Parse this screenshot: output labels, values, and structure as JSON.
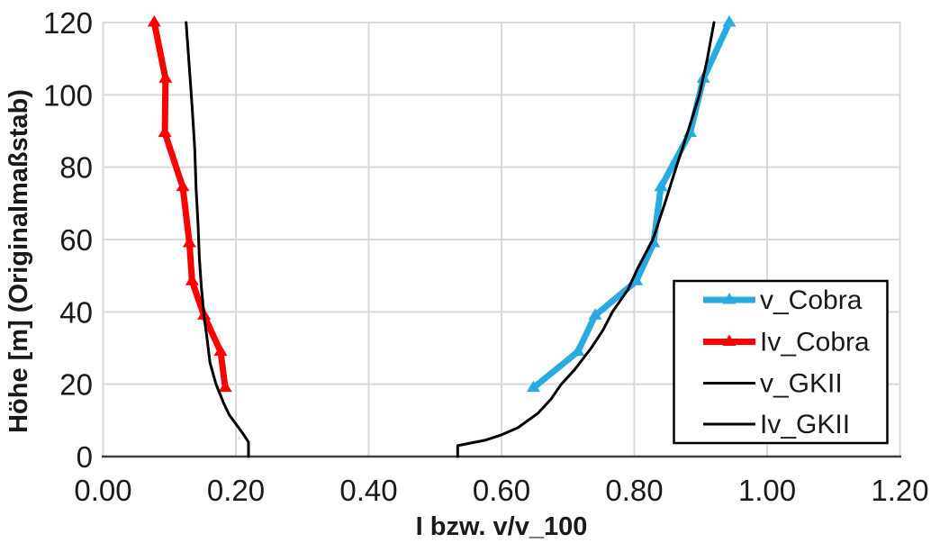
{
  "axes": {
    "x": {
      "title": "I bzw. v/v_100",
      "min": 0,
      "max": 1.2,
      "ticks": [
        "0.00",
        "0.20",
        "0.40",
        "0.60",
        "0.80",
        "1.00",
        "1.20"
      ],
      "tick_values": [
        0,
        0.2,
        0.4,
        0.6,
        0.8,
        1.0,
        1.2
      ]
    },
    "y": {
      "title": "Höhe [m] (Originalmaßstab)",
      "min": 0,
      "max": 120,
      "ticks": [
        "0",
        "20",
        "40",
        "60",
        "80",
        "100",
        "120"
      ],
      "tick_values": [
        0,
        20,
        40,
        60,
        80,
        100,
        120
      ]
    }
  },
  "plot": {
    "background": "#ffffff",
    "grid_color": "#d9d9d9",
    "axis_line_color": "#404040",
    "grid": "on"
  },
  "chart_data": {
    "type": "line",
    "description": "Vertical profiles: x = turbulence intensity I or normalized velocity v/v_100, y = height in m",
    "xlabel": "I bzw. v/v_100",
    "ylabel": "Höhe [m] (Originalmaßstab)",
    "xlim": [
      0,
      1.2
    ],
    "ylim": [
      0,
      120
    ],
    "legend": {
      "position": "inside-right",
      "entries": [
        "v_Cobra",
        "Iv_Cobra",
        "v_GKII",
        "Iv_GKII"
      ]
    },
    "series": [
      {
        "name": "v_Cobra",
        "color": "#29abe2",
        "marker": "triangle-up",
        "line_width": 7,
        "points": [
          [
            0.648,
            19
          ],
          [
            0.715,
            29
          ],
          [
            0.741,
            39
          ],
          [
            0.803,
            48.5
          ],
          [
            0.829,
            59
          ],
          [
            0.84,
            74.5
          ],
          [
            0.884,
            89.5
          ],
          [
            0.904,
            104.5
          ],
          [
            0.943,
            120
          ]
        ]
      },
      {
        "name": "Iv_Cobra",
        "color": "#ff0000",
        "marker": "triangle-up",
        "line_width": 7,
        "points": [
          [
            0.184,
            19
          ],
          [
            0.177,
            29
          ],
          [
            0.152,
            39
          ],
          [
            0.134,
            48.5
          ],
          [
            0.13,
            59
          ],
          [
            0.12,
            74.5
          ],
          [
            0.093,
            89.5
          ],
          [
            0.094,
            104.5
          ],
          [
            0.077,
            120
          ]
        ]
      },
      {
        "name": "v_GKII",
        "color": "#000000",
        "marker": "none",
        "line_width": 3,
        "points": [
          [
            0.534,
            0
          ],
          [
            0.534,
            3
          ],
          [
            0.575,
            4.5
          ],
          [
            0.6,
            6
          ],
          [
            0.625,
            8
          ],
          [
            0.655,
            12
          ],
          [
            0.675,
            16
          ],
          [
            0.69,
            20
          ],
          [
            0.71,
            24
          ],
          [
            0.735,
            30
          ],
          [
            0.753,
            35
          ],
          [
            0.767,
            40
          ],
          [
            0.79,
            46
          ],
          [
            0.805,
            52
          ],
          [
            0.828,
            60
          ],
          [
            0.846,
            70
          ],
          [
            0.863,
            80
          ],
          [
            0.881,
            90
          ],
          [
            0.898,
            100
          ],
          [
            0.91,
            110
          ],
          [
            0.92,
            120
          ]
        ]
      },
      {
        "name": "Iv_GKII",
        "color": "#000000",
        "marker": "none",
        "line_width": 3,
        "points": [
          [
            0.219,
            0
          ],
          [
            0.219,
            4
          ],
          [
            0.21,
            6.5
          ],
          [
            0.202,
            8.5
          ],
          [
            0.19,
            11.5
          ],
          [
            0.181,
            15
          ],
          [
            0.17,
            20
          ],
          [
            0.161,
            26
          ],
          [
            0.157,
            32
          ],
          [
            0.152,
            39
          ],
          [
            0.148,
            47
          ],
          [
            0.145,
            55
          ],
          [
            0.143,
            64
          ],
          [
            0.14,
            74
          ],
          [
            0.138,
            85
          ],
          [
            0.134,
            97
          ],
          [
            0.129,
            110
          ],
          [
            0.125,
            120
          ]
        ]
      }
    ]
  }
}
